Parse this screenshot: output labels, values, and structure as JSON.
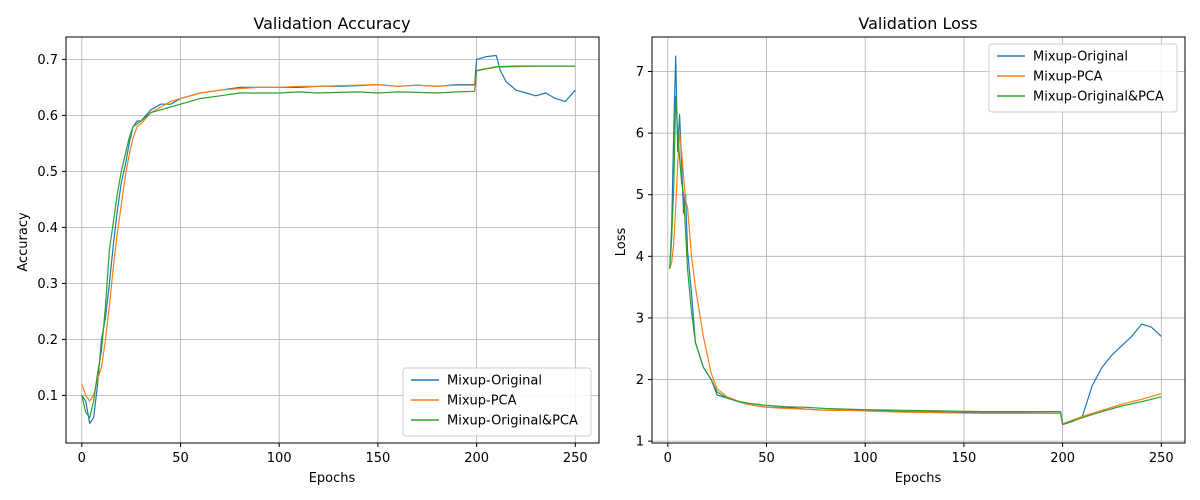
{
  "chart_data": [
    {
      "type": "line",
      "title": "Validation Accuracy",
      "xlabel": "Epochs",
      "ylabel": "Accuracy",
      "xlim": [
        -8,
        262
      ],
      "ylim": [
        0.015,
        0.74
      ],
      "xticks": [
        0,
        50,
        100,
        150,
        200,
        250
      ],
      "xtick_labels": [
        "0",
        "50",
        "100",
        "150",
        "200",
        "250"
      ],
      "yticks": [
        0.1,
        0.2,
        0.3,
        0.4,
        0.5,
        0.6,
        0.7
      ],
      "ytick_labels": [
        "0.1",
        "0.2",
        "0.3",
        "0.4",
        "0.5",
        "0.6",
        "0.7"
      ],
      "grid": true,
      "legend_position": "lower-right",
      "series": [
        {
          "name": "Mixup-Original",
          "color": "#1f77b4",
          "x": [
            0,
            2,
            4,
            6,
            8,
            10,
            12,
            14,
            16,
            18,
            20,
            22,
            24,
            26,
            28,
            30,
            35,
            40,
            45,
            50,
            60,
            70,
            80,
            90,
            100,
            110,
            120,
            130,
            140,
            150,
            160,
            170,
            180,
            190,
            199,
            200,
            205,
            210,
            212,
            215,
            220,
            225,
            230,
            235,
            240,
            245,
            250
          ],
          "y": [
            0.1,
            0.09,
            0.05,
            0.06,
            0.12,
            0.2,
            0.24,
            0.3,
            0.37,
            0.43,
            0.48,
            0.51,
            0.55,
            0.58,
            0.59,
            0.59,
            0.61,
            0.62,
            0.62,
            0.63,
            0.64,
            0.645,
            0.65,
            0.65,
            0.65,
            0.65,
            0.652,
            0.652,
            0.653,
            0.655,
            0.652,
            0.654,
            0.652,
            0.655,
            0.655,
            0.7,
            0.705,
            0.707,
            0.68,
            0.66,
            0.645,
            0.64,
            0.635,
            0.64,
            0.63,
            0.625,
            0.645
          ]
        },
        {
          "name": "Mixup-PCA",
          "color": "#ff7f0e",
          "x": [
            0,
            2,
            4,
            6,
            8,
            10,
            12,
            14,
            16,
            18,
            20,
            22,
            24,
            26,
            28,
            30,
            35,
            40,
            45,
            50,
            60,
            70,
            80,
            90,
            100,
            110,
            120,
            130,
            140,
            150,
            160,
            170,
            180,
            190,
            199,
            200,
            210,
            220,
            230,
            240,
            250
          ],
          "y": [
            0.12,
            0.1,
            0.09,
            0.1,
            0.13,
            0.15,
            0.2,
            0.26,
            0.33,
            0.39,
            0.44,
            0.49,
            0.53,
            0.56,
            0.58,
            0.585,
            0.605,
            0.615,
            0.625,
            0.63,
            0.64,
            0.645,
            0.648,
            0.65,
            0.65,
            0.652,
            0.652,
            0.653,
            0.654,
            0.655,
            0.652,
            0.654,
            0.652,
            0.654,
            0.654,
            0.68,
            0.686,
            0.687,
            0.688,
            0.688,
            0.688
          ]
        },
        {
          "name": "Mixup-Original&PCA",
          "color": "#2ca02c",
          "x": [
            0,
            2,
            4,
            6,
            8,
            10,
            12,
            14,
            16,
            18,
            20,
            22,
            24,
            26,
            28,
            30,
            35,
            40,
            45,
            50,
            60,
            70,
            80,
            90,
            100,
            110,
            120,
            130,
            140,
            150,
            160,
            170,
            180,
            190,
            199,
            200,
            210,
            220,
            230,
            240,
            250
          ],
          "y": [
            0.1,
            0.07,
            0.06,
            0.09,
            0.14,
            0.18,
            0.26,
            0.36,
            0.41,
            0.46,
            0.5,
            0.53,
            0.56,
            0.58,
            0.585,
            0.59,
            0.605,
            0.61,
            0.615,
            0.62,
            0.63,
            0.635,
            0.64,
            0.64,
            0.64,
            0.642,
            0.64,
            0.641,
            0.642,
            0.64,
            0.642,
            0.641,
            0.64,
            0.642,
            0.643,
            0.68,
            0.687,
            0.688,
            0.688,
            0.688,
            0.688
          ]
        }
      ]
    },
    {
      "type": "line",
      "title": "Validation Loss",
      "xlabel": "Epochs",
      "ylabel": "Loss",
      "xlim": [
        -8,
        262
      ],
      "ylim": [
        0.97,
        7.56
      ],
      "xticks": [
        0,
        50,
        100,
        150,
        200,
        250
      ],
      "xtick_labels": [
        "0",
        "50",
        "100",
        "150",
        "200",
        "250"
      ],
      "yticks": [
        1,
        2,
        3,
        4,
        5,
        6,
        7
      ],
      "ytick_labels": [
        "1",
        "2",
        "3",
        "4",
        "5",
        "6",
        "7"
      ],
      "grid": true,
      "legend_position": "top-right",
      "series": [
        {
          "name": "Mixup-Original",
          "color": "#1f77b4",
          "x": [
            1,
            2,
            3,
            4,
            5,
            6,
            7,
            8,
            9,
            10,
            12,
            14,
            16,
            18,
            20,
            22,
            25,
            30,
            35,
            40,
            50,
            60,
            70,
            80,
            90,
            100,
            120,
            140,
            160,
            180,
            199,
            200,
            205,
            210,
            215,
            220,
            225,
            230,
            235,
            240,
            245,
            250
          ],
          "y": [
            3.8,
            4.5,
            6.0,
            7.25,
            5.7,
            6.3,
            5.5,
            4.7,
            5.0,
            4.1,
            3.4,
            2.6,
            2.4,
            2.2,
            2.1,
            2.0,
            1.75,
            1.7,
            1.65,
            1.6,
            1.55,
            1.55,
            1.52,
            1.5,
            1.5,
            1.5,
            1.48,
            1.47,
            1.46,
            1.46,
            1.45,
            1.27,
            1.32,
            1.4,
            1.9,
            2.2,
            2.4,
            2.55,
            2.7,
            2.9,
            2.85,
            2.7
          ]
        },
        {
          "name": "Mixup-PCA",
          "color": "#ff7f0e",
          "x": [
            1,
            2,
            3,
            4,
            5,
            6,
            7,
            8,
            9,
            10,
            12,
            14,
            16,
            18,
            20,
            22,
            25,
            30,
            35,
            40,
            50,
            60,
            70,
            80,
            90,
            100,
            120,
            140,
            160,
            180,
            199,
            200,
            210,
            220,
            230,
            240,
            250
          ],
          "y": [
            3.8,
            3.9,
            4.2,
            4.8,
            5.5,
            6.0,
            5.7,
            5.3,
            4.9,
            4.8,
            4.0,
            3.5,
            3.1,
            2.7,
            2.4,
            2.1,
            1.85,
            1.72,
            1.66,
            1.6,
            1.55,
            1.53,
            1.52,
            1.5,
            1.5,
            1.49,
            1.47,
            1.46,
            1.45,
            1.45,
            1.45,
            1.28,
            1.4,
            1.5,
            1.6,
            1.68,
            1.77
          ]
        },
        {
          "name": "Mixup-Original&PCA",
          "color": "#2ca02c",
          "x": [
            1,
            2,
            3,
            4,
            5,
            6,
            7,
            8,
            9,
            10,
            12,
            14,
            16,
            18,
            20,
            22,
            25,
            30,
            35,
            40,
            50,
            60,
            70,
            80,
            90,
            100,
            120,
            140,
            160,
            180,
            199,
            200,
            210,
            220,
            230,
            240,
            250
          ],
          "y": [
            3.8,
            4.3,
            5.1,
            6.6,
            6.0,
            5.6,
            5.2,
            5.0,
            4.4,
            3.8,
            3.1,
            2.6,
            2.4,
            2.2,
            2.1,
            2.0,
            1.8,
            1.7,
            1.65,
            1.62,
            1.58,
            1.56,
            1.55,
            1.53,
            1.52,
            1.51,
            1.5,
            1.49,
            1.48,
            1.48,
            1.48,
            1.27,
            1.38,
            1.48,
            1.57,
            1.64,
            1.72
          ]
        }
      ]
    }
  ]
}
